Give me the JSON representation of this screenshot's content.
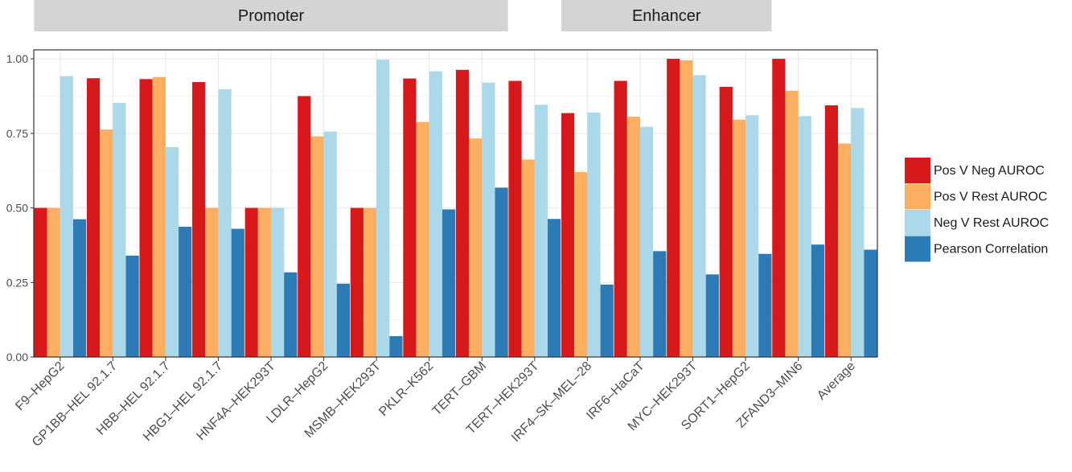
{
  "colors": {
    "pos_v_neg": "#d7191c",
    "pos_v_rest": "#fdae61",
    "neg_v_rest": "#abd9e9",
    "pearson": "#2c7bb6",
    "strip_bg": "#d4d4d4",
    "grid": "#ebebeb"
  },
  "chart_data": {
    "type": "bar",
    "title": "",
    "xlabel": "",
    "ylabel": "",
    "ylim": [
      0,
      1.03
    ],
    "yticks": [
      "0.00",
      "0.25",
      "0.50",
      "0.75",
      "1.00"
    ],
    "grid": true,
    "legend_position": "right",
    "groups": [
      {
        "label": "Promoter",
        "first_category": 0,
        "last_category": 8
      },
      {
        "label": "Enhancer",
        "first_category": 10,
        "last_category": 13
      }
    ],
    "categories": [
      "F9–HepG2",
      "GP1BB–HEL 92.1.7",
      "HBB–HEL 92.1.7",
      "HBG1–HEL 92.1.7",
      "HNF4A–HEK293T",
      "LDLR–HepG2",
      "MSMB–HEK293T",
      "PKLR–K562",
      "TERT–GBM",
      "TERT–HEK293T",
      "IRF4–SK–MEL–28",
      "IRF6–HaCaT",
      "MYC–HEK293T",
      "SORT1–HepG2",
      "ZFAND3–MIN6",
      "Average"
    ],
    "series": [
      {
        "name": "Pos V Neg AUROC",
        "color_key": "pos_v_neg",
        "values": [
          0.5,
          0.935,
          0.932,
          0.922,
          0.5,
          0.875,
          0.5,
          0.934,
          0.963,
          0.926,
          0.818,
          0.926,
          1.0,
          0.906,
          1.0,
          0.844
        ]
      },
      {
        "name": "Pos V Rest AUROC",
        "color_key": "pos_v_rest",
        "values": [
          0.5,
          0.763,
          0.939,
          0.5,
          0.5,
          0.74,
          0.5,
          0.788,
          0.733,
          0.662,
          0.62,
          0.806,
          0.995,
          0.796,
          0.893,
          0.716
        ]
      },
      {
        "name": "Neg V Rest AUROC",
        "color_key": "neg_v_rest",
        "values": [
          0.942,
          0.852,
          0.704,
          0.898,
          0.5,
          0.756,
          0.997,
          0.958,
          0.92,
          0.846,
          0.82,
          0.772,
          0.945,
          0.811,
          0.808,
          0.835
        ]
      },
      {
        "name": "Pearson Correlation",
        "color_key": "pearson",
        "values": [
          0.462,
          0.34,
          0.437,
          0.43,
          0.284,
          0.246,
          0.07,
          0.495,
          0.568,
          0.463,
          0.243,
          0.355,
          0.277,
          0.346,
          0.377,
          0.36
        ]
      }
    ]
  }
}
